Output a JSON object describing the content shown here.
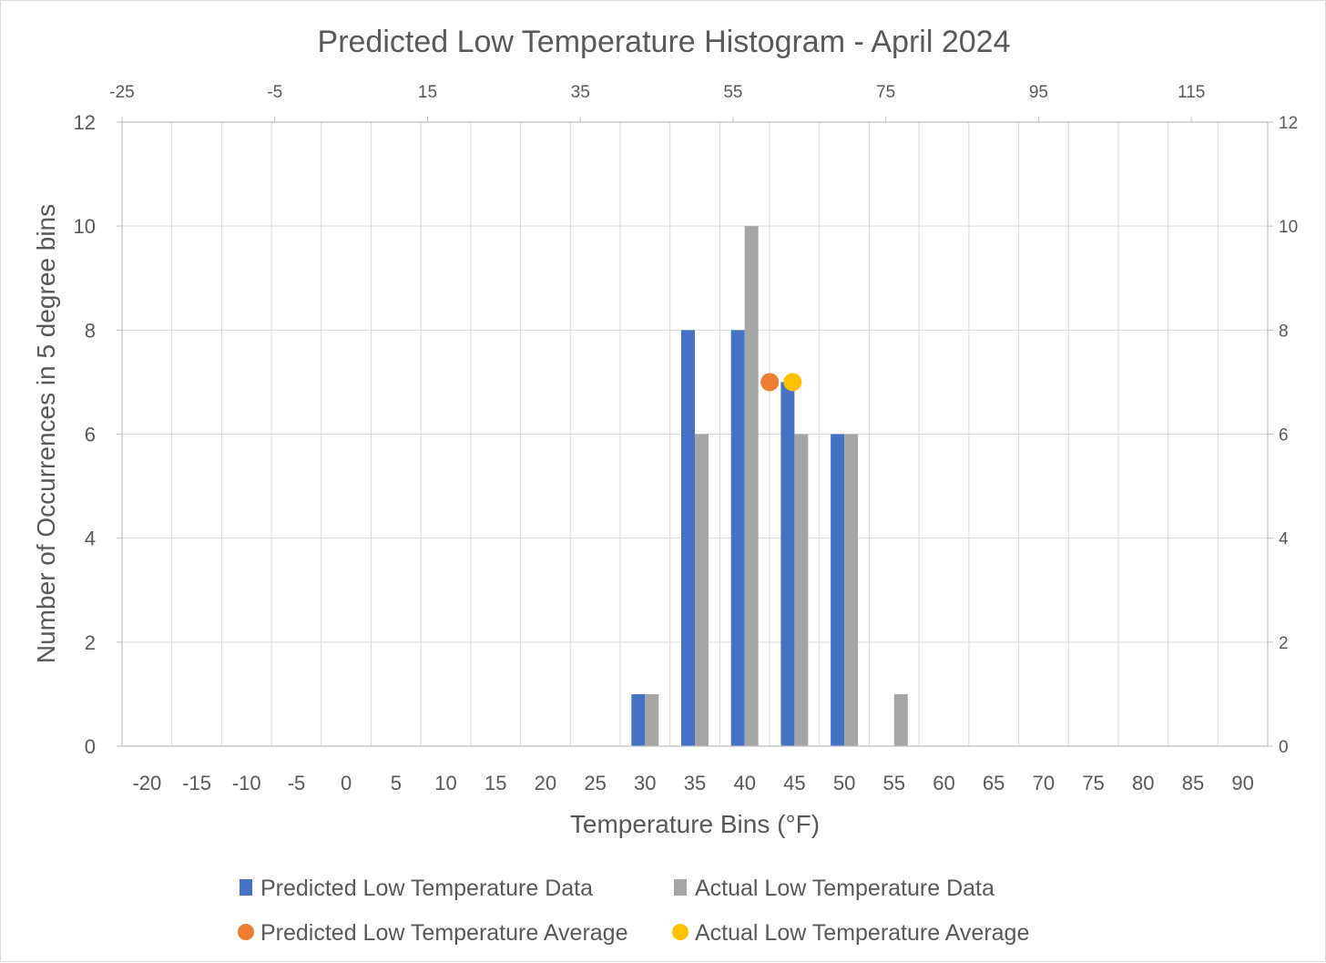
{
  "chart_data": {
    "type": "bar",
    "title": "Predicted Low Temperature Histogram - April 2024",
    "xlabel": "Temperature Bins (°F)",
    "ylabel": "Number of Occurrences in 5 degree bins",
    "categories": [
      "-20",
      "-15",
      "-10",
      "-5",
      "0",
      "5",
      "10",
      "15",
      "20",
      "25",
      "30",
      "35",
      "40",
      "45",
      "50",
      "55",
      "60",
      "65",
      "70",
      "75",
      "80",
      "85",
      "90"
    ],
    "series": [
      {
        "name": "Predicted Low Temperature Data",
        "color": "#4472c4",
        "values": [
          0,
          0,
          0,
          0,
          0,
          0,
          0,
          0,
          0,
          0,
          1,
          8,
          8,
          7,
          6,
          0,
          0,
          0,
          0,
          0,
          0,
          0,
          0
        ]
      },
      {
        "name": "Actual Low Temperature Data",
        "color": "#a5a5a5",
        "values": [
          0,
          0,
          0,
          0,
          0,
          0,
          0,
          0,
          0,
          0,
          1,
          6,
          10,
          6,
          6,
          1,
          0,
          0,
          0,
          0,
          0,
          0,
          0
        ]
      }
    ],
    "scatter_series": [
      {
        "name": "Predicted Low Temperature Average",
        "color": "#ed7d31",
        "x": 59.8,
        "y": 7
      },
      {
        "name": "Actual Low Temperature Average",
        "color": "#ffc000",
        "x": 62.8,
        "y": 7
      }
    ],
    "ylim": [
      0,
      12
    ],
    "yticks": [
      0,
      2,
      4,
      6,
      8,
      10,
      12
    ],
    "y2lim": [
      0,
      12
    ],
    "y2ticks": [
      0,
      2,
      4,
      6,
      8,
      10,
      12
    ],
    "x2lim": [
      -25,
      125
    ],
    "x2ticks": [
      -25,
      -5,
      15,
      35,
      55,
      75,
      95,
      115
    ],
    "grid": true,
    "legend_position": "bottom"
  }
}
